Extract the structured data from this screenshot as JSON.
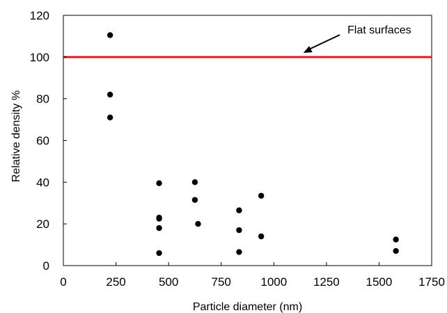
{
  "chart_data": {
    "type": "scatter",
    "xlabel": "Particle diameter (nm)",
    "ylabel": "Relative density %",
    "xlim": [
      0,
      1750
    ],
    "ylim": [
      0,
      120
    ],
    "x_ticks": [
      "0",
      "250",
      "500",
      "750",
      "1000",
      "1250",
      "1500",
      "1750"
    ],
    "y_ticks": [
      "0",
      "20",
      "40",
      "60",
      "80",
      "100",
      "120"
    ],
    "grid": false,
    "points": [
      {
        "x": 222,
        "y": 110.5
      },
      {
        "x": 222,
        "y": 82
      },
      {
        "x": 222,
        "y": 71
      },
      {
        "x": 455,
        "y": 39.5
      },
      {
        "x": 455,
        "y": 23
      },
      {
        "x": 455,
        "y": 22.5
      },
      {
        "x": 455,
        "y": 18
      },
      {
        "x": 455,
        "y": 6
      },
      {
        "x": 625,
        "y": 40
      },
      {
        "x": 625,
        "y": 31.5
      },
      {
        "x": 640,
        "y": 20
      },
      {
        "x": 835,
        "y": 26.5
      },
      {
        "x": 835,
        "y": 17
      },
      {
        "x": 835,
        "y": 6.5
      },
      {
        "x": 940,
        "y": 33.5
      },
      {
        "x": 940,
        "y": 14
      },
      {
        "x": 1580,
        "y": 12.5
      },
      {
        "x": 1580,
        "y": 7
      }
    ],
    "reference_line": {
      "y": 100,
      "color": "#e8191c"
    },
    "annotation": {
      "text": "Flat surfaces",
      "arrow_to": {
        "x": 1140,
        "y": 102
      }
    },
    "marker_color": "#000000"
  }
}
